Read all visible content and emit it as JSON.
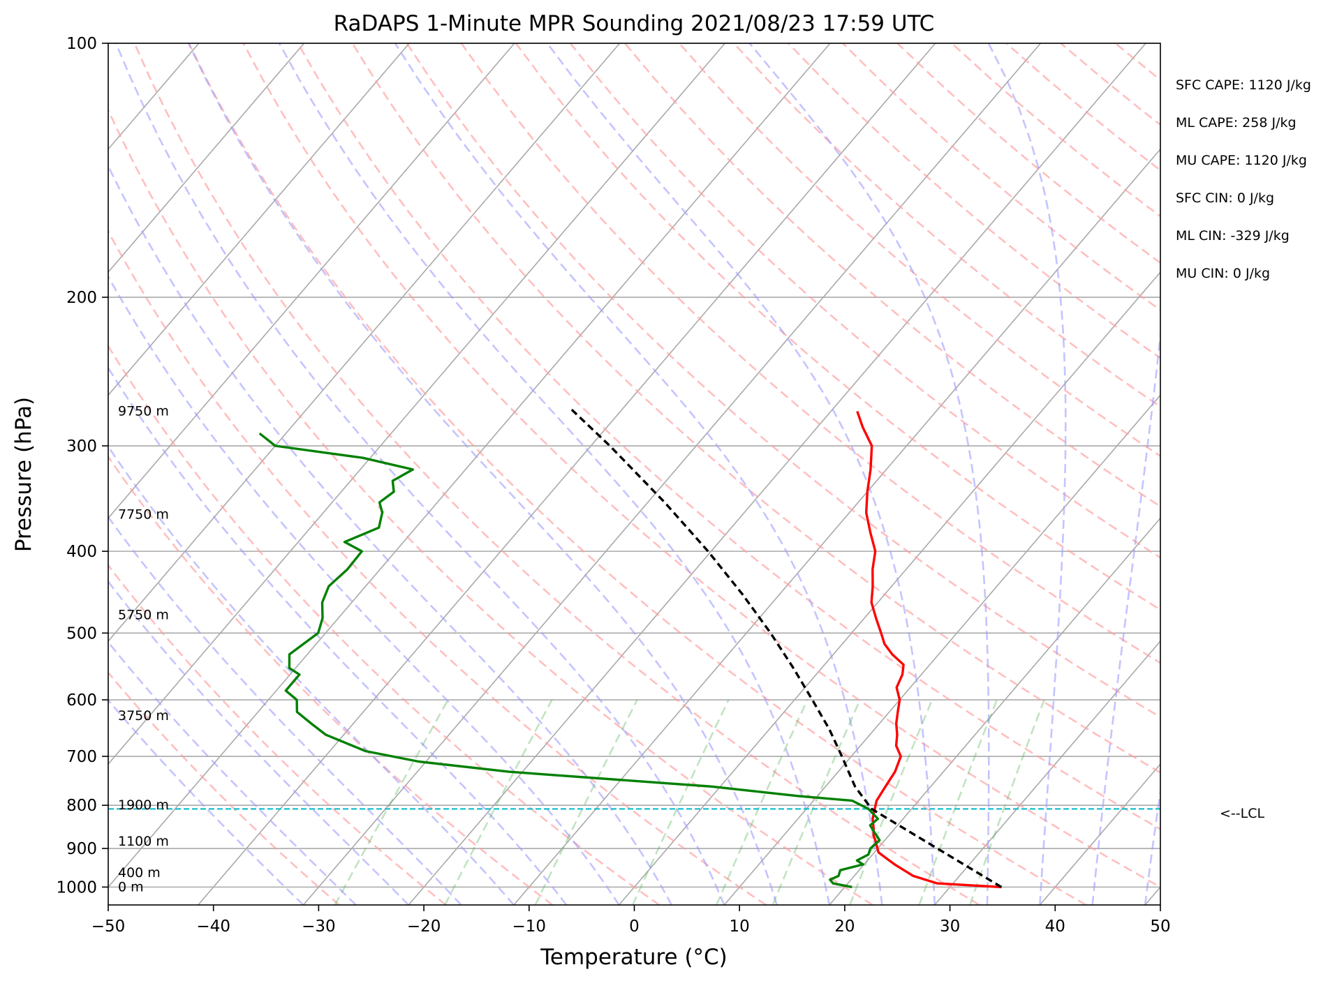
{
  "chart_data": {
    "type": "line",
    "title": "RaDAPS 1-Minute MPR Sounding 2021/08/23 17:59 UTC",
    "xlabel": "Temperature (°C)",
    "ylabel": "Pressure (hPa)",
    "xlim": [
      -50,
      50
    ],
    "ylim": [
      1050,
      100
    ],
    "y_scale": "log",
    "skew": true,
    "grid": true,
    "x_ticks": [
      "−50",
      "−40",
      "−30",
      "−20",
      "−10",
      "0",
      "10",
      "20",
      "30",
      "40",
      "50"
    ],
    "y_ticks": [
      "100",
      "200",
      "300",
      "400",
      "500",
      "600",
      "700",
      "800",
      "900",
      "1000"
    ],
    "height_labels": [
      {
        "text": "9750 m",
        "p": 273
      },
      {
        "text": "7750 m",
        "p": 362
      },
      {
        "text": "5750 m",
        "p": 476
      },
      {
        "text": "3750 m",
        "p": 627
      },
      {
        "text": "1900 m",
        "p": 800
      },
      {
        "text": "1100 m",
        "p": 883
      },
      {
        "text": "400 m",
        "p": 962
      },
      {
        "text": "0 m",
        "p": 1000
      }
    ],
    "stats": [
      "SFC CAPE: 1120 J/kg",
      "ML CAPE: 258 J/kg",
      "MU CAPE: 1120 J/kg",
      "SFC CIN: 0 J/kg",
      "ML CIN: -329 J/kg",
      "MU CIN: 0 J/kg"
    ],
    "lcl": {
      "label": "<--LCL",
      "p": 808,
      "color": "#17becf"
    },
    "series": [
      {
        "key": "temperature",
        "color": "#ff0000",
        "style": "solid",
        "points": [
          [
            1000,
            34.9
          ],
          [
            990,
            28.5
          ],
          [
            970,
            25.6
          ],
          [
            940,
            22.9
          ],
          [
            910,
            20.4
          ],
          [
            880,
            19.1
          ],
          [
            870,
            18.6
          ],
          [
            850,
            17.9
          ],
          [
            830,
            17.1
          ],
          [
            808,
            16.5
          ],
          [
            790,
            16.0
          ],
          [
            760,
            15.7
          ],
          [
            730,
            15.4
          ],
          [
            700,
            14.7
          ],
          [
            680,
            13.4
          ],
          [
            660,
            12.6
          ],
          [
            640,
            11.6
          ],
          [
            620,
            10.8
          ],
          [
            600,
            10.0
          ],
          [
            580,
            8.7
          ],
          [
            560,
            8.2
          ],
          [
            545,
            7.5
          ],
          [
            530,
            5.6
          ],
          [
            515,
            4.0
          ],
          [
            500,
            2.8
          ],
          [
            480,
            1.1
          ],
          [
            460,
            -0.6
          ],
          [
            440,
            -1.8
          ],
          [
            420,
            -3.2
          ],
          [
            400,
            -4.4
          ],
          [
            380,
            -6.4
          ],
          [
            360,
            -8.4
          ],
          [
            340,
            -10.0
          ],
          [
            320,
            -11.5
          ],
          [
            300,
            -13.3
          ],
          [
            285,
            -15.7
          ],
          [
            273,
            -17.5
          ]
        ]
      },
      {
        "key": "dewpoint",
        "color": "#008000",
        "style": "solid",
        "points": [
          [
            1000,
            20.7
          ],
          [
            990,
            18.6
          ],
          [
            980,
            18.0
          ],
          [
            970,
            18.5
          ],
          [
            955,
            18.2
          ],
          [
            940,
            19.9
          ],
          [
            930,
            19.0
          ],
          [
            915,
            19.6
          ],
          [
            900,
            19.3
          ],
          [
            880,
            19.5
          ],
          [
            860,
            18.3
          ],
          [
            845,
            17.4
          ],
          [
            830,
            17.6
          ],
          [
            808,
            15.9
          ],
          [
            790,
            13.7
          ],
          [
            780,
            8.2
          ],
          [
            760,
            -0.9
          ],
          [
            750,
            -7.6
          ],
          [
            730,
            -21.3
          ],
          [
            710,
            -30.7
          ],
          [
            690,
            -36.6
          ],
          [
            660,
            -41.7
          ],
          [
            640,
            -44.0
          ],
          [
            620,
            -46.3
          ],
          [
            600,
            -47.3
          ],
          [
            585,
            -49.1
          ],
          [
            560,
            -49.1
          ],
          [
            550,
            -50.6
          ],
          [
            530,
            -51.7
          ],
          [
            500,
            -50.7
          ],
          [
            480,
            -51.5
          ],
          [
            460,
            -52.8
          ],
          [
            440,
            -53.5
          ],
          [
            420,
            -53.1
          ],
          [
            400,
            -53.2
          ],
          [
            390,
            -55.6
          ],
          [
            375,
            -53.5
          ],
          [
            360,
            -54.4
          ],
          [
            350,
            -55.5
          ],
          [
            340,
            -55.0
          ],
          [
            330,
            -56.0
          ],
          [
            320,
            -55.0
          ],
          [
            310,
            -60.7
          ],
          [
            300,
            -70.0
          ],
          [
            290,
            -72.5
          ]
        ]
      },
      {
        "key": "parcel",
        "color": "#000000",
        "style": "dashed",
        "points": [
          [
            1000,
            34.9
          ],
          [
            808,
            16.2
          ],
          [
            760,
            12.8
          ],
          [
            700,
            9.1
          ],
          [
            650,
            5.7
          ],
          [
            600,
            1.7
          ],
          [
            550,
            -2.7
          ],
          [
            500,
            -7.7
          ],
          [
            450,
            -13.5
          ],
          [
            400,
            -20.3
          ],
          [
            350,
            -28.4
          ],
          [
            300,
            -38.2
          ],
          [
            270,
            -45.2
          ]
        ]
      }
    ]
  }
}
